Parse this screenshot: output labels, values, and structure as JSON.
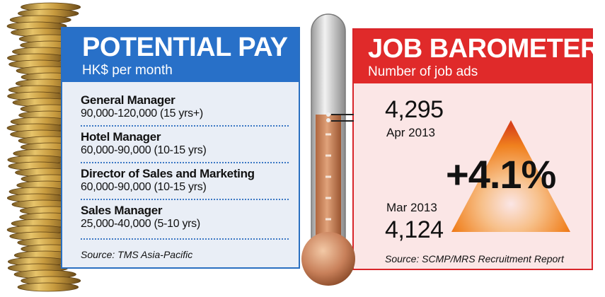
{
  "pay": {
    "title": "POTENTIAL PAY",
    "subtitle": "HK$ per month",
    "rows": [
      {
        "title": "General Manager",
        "range": "90,000-120,000 (15 yrs+)"
      },
      {
        "title": "Hotel Manager",
        "range": "60,000-90,000 (10-15 yrs)"
      },
      {
        "title": "Director of Sales and Marketing",
        "range": "60,000-90,000 (10-15 yrs)"
      },
      {
        "title": "Sales Manager",
        "range": "25,000-40,000 (5-10 yrs)"
      }
    ],
    "source": "Source: TMS Asia-Pacific"
  },
  "job": {
    "title": "JOB BAROMETER",
    "subtitle": "Number of job ads",
    "current_value": "4,295",
    "current_date": "Apr 2013",
    "previous_date": "Mar 2013",
    "previous_value": "4,124",
    "change": "+4.1%",
    "source": "Source: SCMP/MRS Recruitment Report"
  },
  "colors": {
    "pay_blue": "#2870c8",
    "job_red": "#e02a2a",
    "mercury": "#c8805a",
    "arrow_orange": "#f0801e"
  },
  "icons": [
    "coin-stack-icon",
    "thermometer-icon",
    "up-triangle-icon"
  ]
}
